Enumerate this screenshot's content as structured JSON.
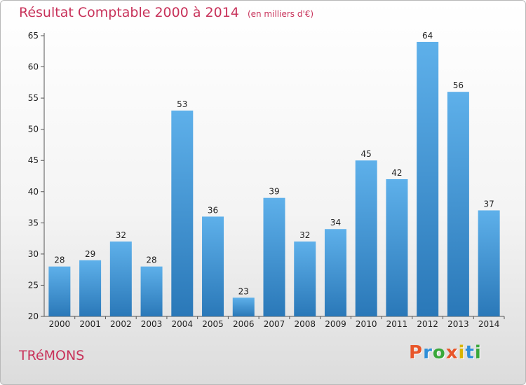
{
  "header": {
    "title": "Résultat Comptable 2000 à 2014",
    "subtitle": "(en milliers d'€)"
  },
  "footer": {
    "town": "TRéMONS",
    "brand": "Proxiti"
  },
  "colors": {
    "title": "#c8325a",
    "bar_top": "#5eb0ea",
    "bar_bottom": "#2a78b8",
    "brand_letters": [
      "#e8562a",
      "#2f8fd8",
      "#3aa83a",
      "#e8562a",
      "#d9b400",
      "#2f8fd8",
      "#3aa83a"
    ]
  },
  "chart_data": {
    "type": "bar",
    "title": "Résultat Comptable 2000 à 2014",
    "subtitle": "(en milliers d'€)",
    "categories": [
      "2000",
      "2001",
      "2002",
      "2003",
      "2004",
      "2005",
      "2006",
      "2007",
      "2008",
      "2009",
      "2010",
      "2011",
      "2012",
      "2013",
      "2014"
    ],
    "values": [
      28,
      29,
      32,
      28,
      53,
      36,
      23,
      39,
      32,
      34,
      45,
      42,
      64,
      56,
      37
    ],
    "ylim": [
      20,
      65
    ],
    "yticks": [
      20,
      25,
      30,
      35,
      40,
      45,
      50,
      55,
      60,
      65
    ],
    "xlabel": "",
    "ylabel": "",
    "grid": false,
    "legend": "none"
  }
}
